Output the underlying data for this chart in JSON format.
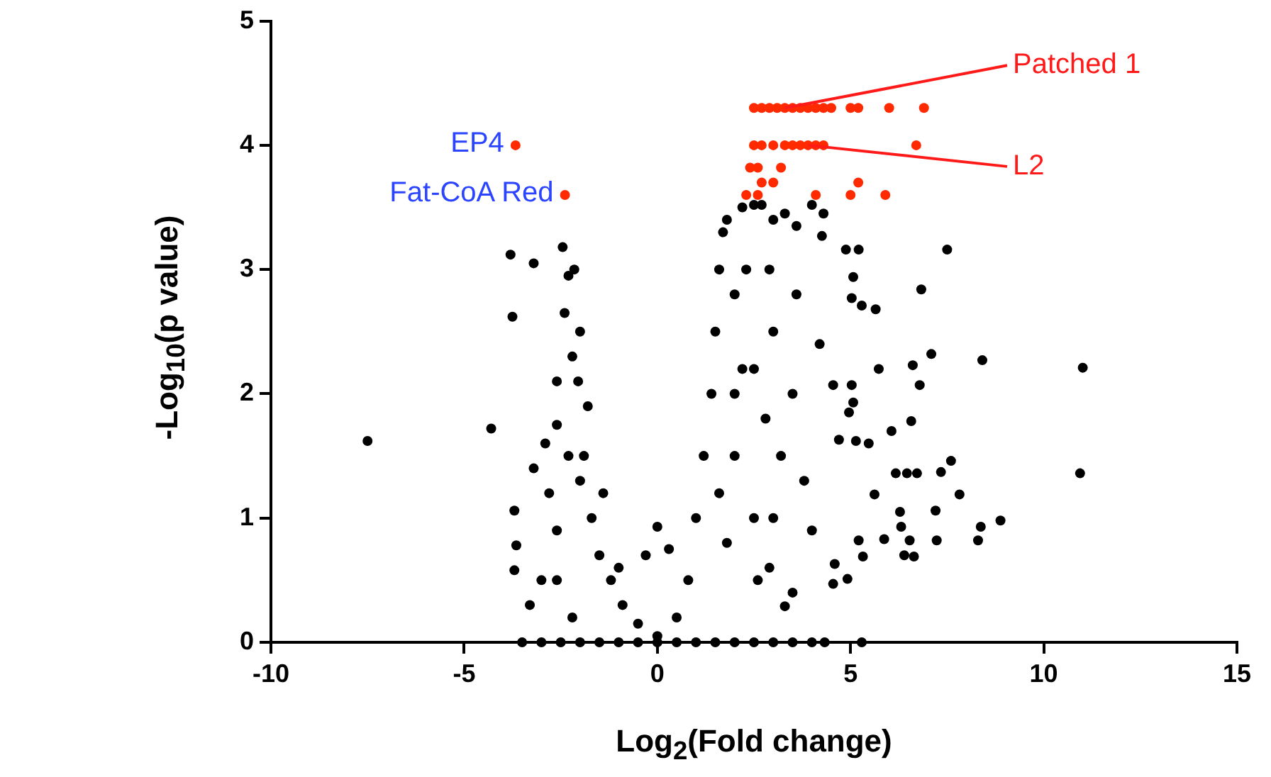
{
  "chart_data": {
    "type": "scatter",
    "xlabel": "Log$_{2}$(Fold change)",
    "ylabel": "-Log$_{10}$(p value)",
    "xlim": [
      -10,
      15
    ],
    "xticks": [
      -10,
      -5,
      0,
      5,
      10,
      15
    ],
    "ylim": [
      0,
      5
    ],
    "yticks": [
      0,
      1,
      2,
      3,
      4,
      5
    ],
    "grid": false,
    "legend": false,
    "marker": "circle",
    "series": [
      {
        "color": "#000000",
        "x": [
          -7.5,
          -4.3,
          -3.8,
          -3.75,
          -3.2,
          -2.45,
          -2.3,
          -2.15,
          -2.4,
          -2.6,
          -2.6,
          -2.2,
          -2.05,
          -2.0,
          -3.7,
          -3.65,
          -3.7,
          -3.3,
          -3.0,
          -2.9,
          -3.2,
          -2.8,
          -2.6,
          -2.6,
          -2.3,
          -1.9,
          -1.7,
          -1.5,
          -1.2,
          -0.9,
          -0.5,
          0,
          -1.8,
          -2.0,
          -1.4,
          -1.0,
          -2.2,
          0,
          -0.3,
          0.3,
          -3.5,
          -3,
          -2.5,
          -2,
          -1.5,
          -1,
          -0.5,
          0,
          0.5,
          1,
          1.5,
          2,
          2.5,
          3,
          3.5,
          4,
          4.33,
          5.29,
          0.5,
          0.8,
          1.0,
          1.2,
          1.4,
          1.5,
          1.6,
          1.7,
          1.8,
          2.0,
          2.2,
          2.0,
          1.8,
          2.5,
          2.6,
          1.6,
          2.0,
          2.3,
          2.2,
          2.5,
          2.7,
          3.0,
          3.3,
          3.6,
          4.0,
          4.3,
          7.5,
          6.83,
          4.26,
          4.88,
          5.21,
          5.07,
          5.03,
          5.29,
          5.65,
          7.09,
          8.41,
          11.01,
          5.73,
          6.61,
          6.79,
          4.55,
          5.03,
          5.07,
          4.96,
          6.06,
          6.57,
          4.7,
          5.14,
          5.47,
          7.6,
          7.34,
          6.17,
          6.46,
          6.72,
          10.94,
          5.62,
          7.82,
          6.28,
          7.2,
          8.88,
          8.37,
          6.31,
          5.21,
          5.87,
          6.53,
          7.23,
          8.3,
          6.39,
          6.64,
          5.32,
          4.59,
          4.92,
          4.55,
          3.3,
          3.0,
          3.5,
          3.2,
          2.8,
          3.8,
          3.0,
          4.0,
          2.9,
          3.5,
          4.2,
          3.6,
          2.9,
          2.5
        ],
        "values": [
          1.62,
          1.72,
          3.12,
          2.62,
          3.05,
          3.18,
          2.95,
          3.0,
          2.65,
          2.1,
          1.75,
          2.3,
          2.1,
          1.3,
          1.06,
          0.78,
          0.58,
          0.3,
          0.5,
          1.6,
          1.4,
          1.2,
          0.9,
          0.5,
          1.5,
          1.5,
          1.0,
          0.7,
          0.5,
          0.3,
          0.15,
          0.05,
          1.9,
          2.5,
          1.2,
          0.6,
          0.2,
          0.93,
          0.7,
          0.75,
          0,
          0,
          0,
          0,
          0,
          0,
          0,
          0,
          0,
          0,
          0,
          0,
          0,
          0,
          0,
          0,
          0,
          0,
          0.2,
          0.5,
          1.0,
          1.5,
          2.0,
          2.5,
          3.0,
          3.3,
          3.4,
          2.8,
          2.2,
          1.5,
          0.8,
          1.0,
          0.5,
          1.2,
          2.0,
          3.0,
          3.5,
          3.52,
          3.52,
          3.4,
          3.45,
          3.35,
          3.52,
          3.45,
          3.16,
          2.84,
          3.27,
          3.16,
          3.16,
          2.94,
          2.77,
          2.71,
          2.68,
          2.32,
          2.27,
          2.21,
          2.2,
          2.23,
          2.07,
          2.07,
          2.07,
          1.93,
          1.85,
          1.7,
          1.78,
          1.63,
          1.62,
          1.6,
          1.46,
          1.37,
          1.36,
          1.36,
          1.36,
          1.36,
          1.19,
          1.19,
          1.05,
          1.06,
          0.98,
          0.93,
          0.93,
          0.82,
          0.83,
          0.82,
          0.82,
          0.82,
          0.7,
          0.69,
          0.69,
          0.63,
          0.51,
          0.47,
          0.29,
          2.5,
          2.0,
          1.5,
          1.8,
          1.3,
          1.0,
          0.9,
          0.6,
          0.4,
          2.4,
          2.8,
          3.0,
          2.2
        ]
      },
      {
        "color": "#ff2a00",
        "x": [
          -3.67,
          -2.39,
          2.5,
          2.7,
          2.9,
          3.1,
          3.3,
          3.5,
          3.7,
          3.9,
          4.1,
          4.3,
          4.5,
          5.0,
          5.2,
          6.0,
          6.9,
          2.5,
          2.7,
          3.0,
          3.3,
          3.5,
          3.7,
          3.9,
          4.1,
          4.3,
          6.7,
          2.4,
          2.6,
          3.2,
          2.7,
          3.0,
          5.2,
          2.3,
          2.6,
          4.1,
          5.0,
          5.9
        ],
        "values": [
          4.0,
          3.6,
          4.3,
          4.3,
          4.3,
          4.3,
          4.3,
          4.3,
          4.3,
          4.3,
          4.3,
          4.3,
          4.3,
          4.3,
          4.3,
          4.3,
          4.3,
          4.0,
          4.0,
          4.0,
          4.0,
          4.0,
          4.0,
          4.0,
          4.0,
          4.0,
          4.0,
          3.82,
          3.82,
          3.82,
          3.7,
          3.7,
          3.7,
          3.6,
          3.6,
          3.6,
          3.6,
          3.6
        ]
      }
    ],
    "annotations": [
      {
        "text": "Patched 1",
        "x": 3.3,
        "y": 4.3
      },
      {
        "text": "L2",
        "x": 3.9,
        "y": 4.0
      },
      {
        "text": "EP4",
        "x": -3.67,
        "y": 4.0
      },
      {
        "text": "Fat-CoA Red",
        "x": -2.39,
        "y": 3.6
      }
    ]
  }
}
